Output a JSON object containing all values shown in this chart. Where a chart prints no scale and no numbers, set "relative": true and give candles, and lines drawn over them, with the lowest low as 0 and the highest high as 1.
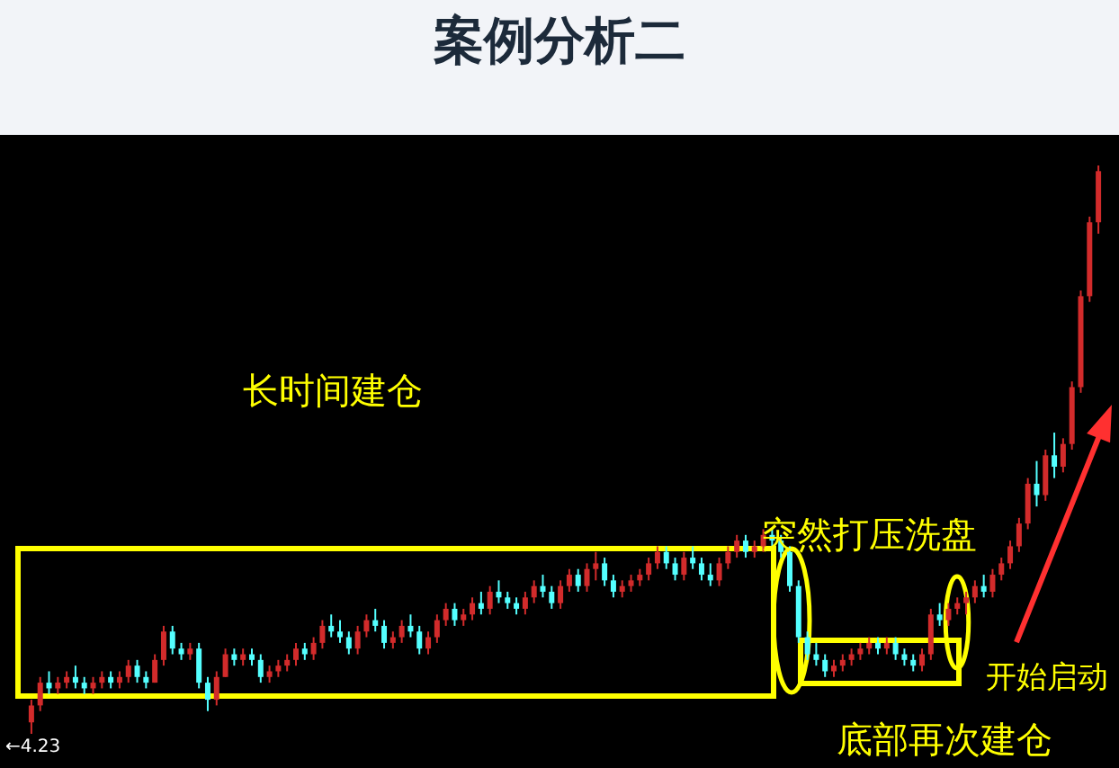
{
  "chart_data": {
    "type": "candlestick",
    "title": "案例分析二",
    "relative": true,
    "categories": [
      null,
      null,
      null,
      null,
      null,
      null,
      null,
      null,
      null,
      null,
      null,
      null,
      null,
      null,
      null,
      null,
      null,
      null,
      null,
      null,
      null,
      null,
      null,
      null,
      null,
      null,
      null,
      null,
      null,
      null,
      null,
      null,
      null,
      null,
      null,
      null,
      null,
      null,
      null,
      null,
      null,
      null,
      null,
      null,
      null,
      null,
      null,
      null,
      null,
      null,
      null,
      null,
      null,
      null,
      null,
      null,
      null,
      null,
      null,
      null,
      null,
      null,
      null,
      null,
      null,
      null,
      null,
      null,
      null,
      null,
      null,
      null,
      null,
      null,
      null,
      null,
      null,
      null,
      null,
      null,
      null,
      null,
      null,
      null,
      null,
      null,
      null,
      null,
      null,
      null,
      null,
      null,
      null,
      null,
      null,
      null,
      null,
      null,
      null,
      null,
      null,
      null,
      null,
      null,
      null,
      null,
      null,
      null,
      null,
      null,
      null,
      null,
      null,
      null,
      null,
      null,
      null,
      null,
      null,
      null,
      null,
      null
    ],
    "ohlc": [
      [
        0.02,
        0.06,
        0.0,
        0.05
      ],
      [
        0.05,
        0.1,
        0.04,
        0.09
      ],
      [
        0.09,
        0.11,
        0.07,
        0.08
      ],
      [
        0.08,
        0.1,
        0.07,
        0.09
      ],
      [
        0.09,
        0.11,
        0.08,
        0.1
      ],
      [
        0.1,
        0.12,
        0.08,
        0.09
      ],
      [
        0.09,
        0.1,
        0.07,
        0.08
      ],
      [
        0.08,
        0.1,
        0.07,
        0.09
      ],
      [
        0.09,
        0.11,
        0.08,
        0.1
      ],
      [
        0.1,
        0.11,
        0.08,
        0.09
      ],
      [
        0.09,
        0.11,
        0.08,
        0.1
      ],
      [
        0.1,
        0.13,
        0.09,
        0.12
      ],
      [
        0.12,
        0.13,
        0.09,
        0.1
      ],
      [
        0.1,
        0.11,
        0.08,
        0.09
      ],
      [
        0.09,
        0.14,
        0.09,
        0.13
      ],
      [
        0.13,
        0.19,
        0.12,
        0.18
      ],
      [
        0.18,
        0.19,
        0.14,
        0.15
      ],
      [
        0.15,
        0.16,
        0.13,
        0.14
      ],
      [
        0.14,
        0.16,
        0.13,
        0.15
      ],
      [
        0.15,
        0.16,
        0.08,
        0.09
      ],
      [
        0.09,
        0.1,
        0.04,
        0.06
      ],
      [
        0.06,
        0.11,
        0.05,
        0.1
      ],
      [
        0.1,
        0.15,
        0.1,
        0.14
      ],
      [
        0.14,
        0.15,
        0.12,
        0.13
      ],
      [
        0.13,
        0.15,
        0.12,
        0.14
      ],
      [
        0.14,
        0.15,
        0.12,
        0.13
      ],
      [
        0.13,
        0.14,
        0.09,
        0.1
      ],
      [
        0.1,
        0.12,
        0.09,
        0.11
      ],
      [
        0.11,
        0.13,
        0.1,
        0.12
      ],
      [
        0.12,
        0.14,
        0.11,
        0.13
      ],
      [
        0.13,
        0.16,
        0.12,
        0.15
      ],
      [
        0.15,
        0.16,
        0.13,
        0.14
      ],
      [
        0.14,
        0.17,
        0.13,
        0.16
      ],
      [
        0.16,
        0.2,
        0.15,
        0.19
      ],
      [
        0.19,
        0.21,
        0.17,
        0.18
      ],
      [
        0.18,
        0.2,
        0.16,
        0.17
      ],
      [
        0.17,
        0.18,
        0.14,
        0.15
      ],
      [
        0.15,
        0.19,
        0.14,
        0.18
      ],
      [
        0.18,
        0.21,
        0.17,
        0.2
      ],
      [
        0.2,
        0.22,
        0.18,
        0.19
      ],
      [
        0.19,
        0.2,
        0.15,
        0.16
      ],
      [
        0.16,
        0.18,
        0.15,
        0.17
      ],
      [
        0.17,
        0.2,
        0.16,
        0.19
      ],
      [
        0.19,
        0.21,
        0.17,
        0.18
      ],
      [
        0.18,
        0.19,
        0.14,
        0.15
      ],
      [
        0.15,
        0.18,
        0.14,
        0.17
      ],
      [
        0.17,
        0.21,
        0.16,
        0.2
      ],
      [
        0.2,
        0.23,
        0.19,
        0.22
      ],
      [
        0.22,
        0.23,
        0.19,
        0.2
      ],
      [
        0.2,
        0.22,
        0.19,
        0.21
      ],
      [
        0.21,
        0.24,
        0.2,
        0.23
      ],
      [
        0.23,
        0.25,
        0.21,
        0.22
      ],
      [
        0.22,
        0.26,
        0.21,
        0.25
      ],
      [
        0.25,
        0.27,
        0.23,
        0.24
      ],
      [
        0.24,
        0.25,
        0.22,
        0.23
      ],
      [
        0.23,
        0.24,
        0.21,
        0.22
      ],
      [
        0.22,
        0.25,
        0.21,
        0.24
      ],
      [
        0.24,
        0.27,
        0.23,
        0.26
      ],
      [
        0.26,
        0.28,
        0.24,
        0.25
      ],
      [
        0.25,
        0.26,
        0.22,
        0.23
      ],
      [
        0.23,
        0.27,
        0.22,
        0.26
      ],
      [
        0.26,
        0.29,
        0.25,
        0.28
      ],
      [
        0.28,
        0.29,
        0.25,
        0.26
      ],
      [
        0.26,
        0.3,
        0.25,
        0.29
      ],
      [
        0.29,
        0.32,
        0.27,
        0.3
      ],
      [
        0.3,
        0.31,
        0.26,
        0.27
      ],
      [
        0.27,
        0.28,
        0.24,
        0.25
      ],
      [
        0.25,
        0.27,
        0.24,
        0.26
      ],
      [
        0.26,
        0.28,
        0.25,
        0.27
      ],
      [
        0.27,
        0.29,
        0.26,
        0.28
      ],
      [
        0.28,
        0.31,
        0.27,
        0.3
      ],
      [
        0.3,
        0.33,
        0.29,
        0.32
      ],
      [
        0.32,
        0.33,
        0.29,
        0.3
      ],
      [
        0.3,
        0.31,
        0.27,
        0.28
      ],
      [
        0.28,
        0.32,
        0.27,
        0.31
      ],
      [
        0.31,
        0.33,
        0.29,
        0.3
      ],
      [
        0.3,
        0.31,
        0.27,
        0.28
      ],
      [
        0.28,
        0.3,
        0.26,
        0.27
      ],
      [
        0.27,
        0.31,
        0.26,
        0.3
      ],
      [
        0.3,
        0.33,
        0.29,
        0.32
      ],
      [
        0.32,
        0.35,
        0.31,
        0.34
      ],
      [
        0.34,
        0.35,
        0.31,
        0.32
      ],
      [
        0.32,
        0.34,
        0.31,
        0.33
      ],
      [
        0.33,
        0.36,
        0.32,
        0.35
      ],
      [
        0.35,
        0.36,
        0.33,
        0.34
      ],
      [
        0.34,
        0.35,
        0.31,
        0.32
      ],
      [
        0.32,
        0.33,
        0.25,
        0.26
      ],
      [
        0.26,
        0.27,
        0.16,
        0.17
      ],
      [
        0.17,
        0.18,
        0.13,
        0.14
      ],
      [
        0.14,
        0.16,
        0.12,
        0.13
      ],
      [
        0.13,
        0.14,
        0.1,
        0.11
      ],
      [
        0.11,
        0.13,
        0.1,
        0.12
      ],
      [
        0.12,
        0.14,
        0.11,
        0.13
      ],
      [
        0.13,
        0.15,
        0.12,
        0.14
      ],
      [
        0.14,
        0.16,
        0.13,
        0.15
      ],
      [
        0.15,
        0.17,
        0.14,
        0.16
      ],
      [
        0.16,
        0.17,
        0.14,
        0.15
      ],
      [
        0.15,
        0.17,
        0.14,
        0.16
      ],
      [
        0.16,
        0.17,
        0.13,
        0.14
      ],
      [
        0.14,
        0.15,
        0.12,
        0.13
      ],
      [
        0.13,
        0.14,
        0.11,
        0.12
      ],
      [
        0.12,
        0.15,
        0.11,
        0.14
      ],
      [
        0.14,
        0.22,
        0.13,
        0.21
      ],
      [
        0.21,
        0.23,
        0.19,
        0.2
      ],
      [
        0.2,
        0.23,
        0.19,
        0.22
      ],
      [
        0.22,
        0.24,
        0.21,
        0.23
      ],
      [
        0.23,
        0.25,
        0.21,
        0.24
      ],
      [
        0.24,
        0.27,
        0.23,
        0.26
      ],
      [
        0.26,
        0.28,
        0.24,
        0.25
      ],
      [
        0.25,
        0.29,
        0.24,
        0.28
      ],
      [
        0.28,
        0.31,
        0.27,
        0.3
      ],
      [
        0.3,
        0.34,
        0.29,
        0.33
      ],
      [
        0.33,
        0.38,
        0.32,
        0.37
      ],
      [
        0.37,
        0.45,
        0.36,
        0.44
      ],
      [
        0.44,
        0.48,
        0.4,
        0.42
      ],
      [
        0.42,
        0.5,
        0.41,
        0.49
      ],
      [
        0.49,
        0.53,
        0.45,
        0.47
      ],
      [
        0.47,
        0.52,
        0.46,
        0.51
      ],
      [
        0.51,
        0.62,
        0.5,
        0.61
      ],
      [
        0.61,
        0.78,
        0.6,
        0.77
      ],
      [
        0.77,
        0.91,
        0.76,
        0.9
      ],
      [
        0.9,
        1.0,
        0.88,
        0.99
      ]
    ],
    "annotations": [
      "长时间建仓",
      "突然打压洗盘",
      "底部再次建仓",
      "开始启动",
      {
        "text": "←4.23",
        "y": 0
      }
    ]
  }
}
